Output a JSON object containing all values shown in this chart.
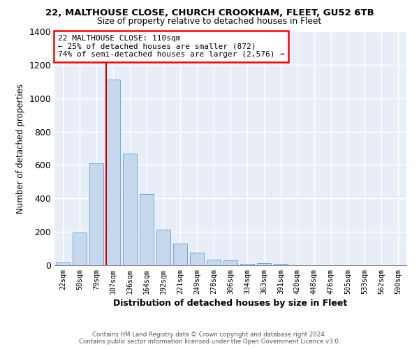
{
  "title": "22, MALTHOUSE CLOSE, CHURCH CROOKHAM, FLEET, GU52 6TB",
  "subtitle": "Size of property relative to detached houses in Fleet",
  "xlabel": "Distribution of detached houses by size in Fleet",
  "ylabel": "Number of detached properties",
  "categories": [
    "22sqm",
    "50sqm",
    "79sqm",
    "107sqm",
    "136sqm",
    "164sqm",
    "192sqm",
    "221sqm",
    "249sqm",
    "278sqm",
    "306sqm",
    "334sqm",
    "363sqm",
    "391sqm",
    "420sqm",
    "448sqm",
    "476sqm",
    "505sqm",
    "533sqm",
    "562sqm",
    "590sqm"
  ],
  "values": [
    15,
    195,
    610,
    1110,
    670,
    425,
    215,
    130,
    75,
    35,
    28,
    10,
    13,
    10,
    0,
    0,
    0,
    0,
    0,
    0,
    0
  ],
  "bar_color": "#c5d8ee",
  "bar_edge_color": "#6aaad4",
  "ylim": [
    0,
    1400
  ],
  "yticks": [
    0,
    200,
    400,
    600,
    800,
    1000,
    1200,
    1400
  ],
  "property_label": "22 MALTHOUSE CLOSE: 110sqm",
  "annotation_line1": "← 25% of detached houses are smaller (872)",
  "annotation_line2": "74% of semi-detached houses are larger (2,576) →",
  "vline_color": "#cc0000",
  "vline_index": 3,
  "background_color": "#e8eef8",
  "figure_bg": "#ffffff",
  "grid_color": "#ffffff",
  "footer_line1": "Contains HM Land Registry data © Crown copyright and database right 2024.",
  "footer_line2": "Contains public sector information licensed under the Open Government Licence v3.0."
}
